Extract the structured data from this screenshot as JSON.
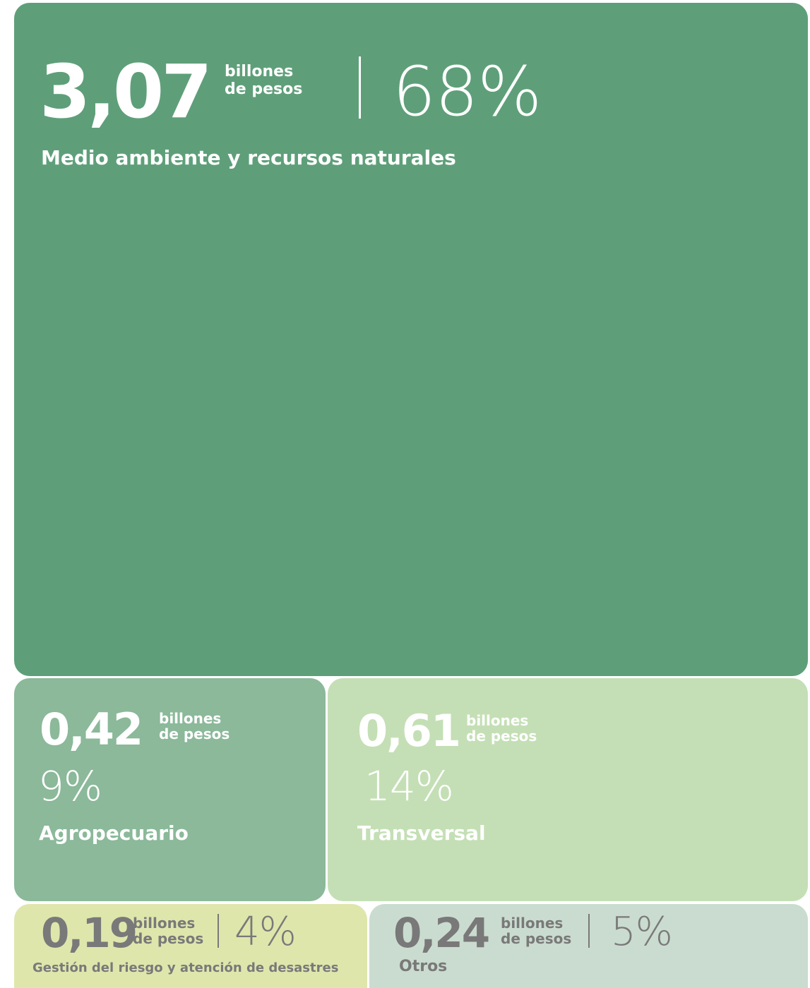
{
  "chart_data": {
    "type": "treemap",
    "unit_label": [
      "billones",
      "de pesos"
    ],
    "items": [
      {
        "category": "Medio ambiente y recursos naturales",
        "value": "3,07",
        "value_num": 3.07,
        "percent": "68%",
        "color": "#5e9f79"
      },
      {
        "category": "Agropecuario",
        "value": "0,42",
        "value_num": 0.42,
        "percent": "9%",
        "color": "#8bb99a"
      },
      {
        "category": "Transversal",
        "value": "0,61",
        "value_num": 0.61,
        "percent": "14%",
        "color": "#c4dfb5"
      },
      {
        "category": "Gestión del riesgo y atención de desastres",
        "value": "0,19",
        "value_num": 0.19,
        "percent": "4%",
        "color": "#dfe6ac"
      },
      {
        "category": "Otros",
        "value": "0,24",
        "value_num": 0.24,
        "percent": "5%",
        "color": "#cadccf"
      }
    ]
  }
}
